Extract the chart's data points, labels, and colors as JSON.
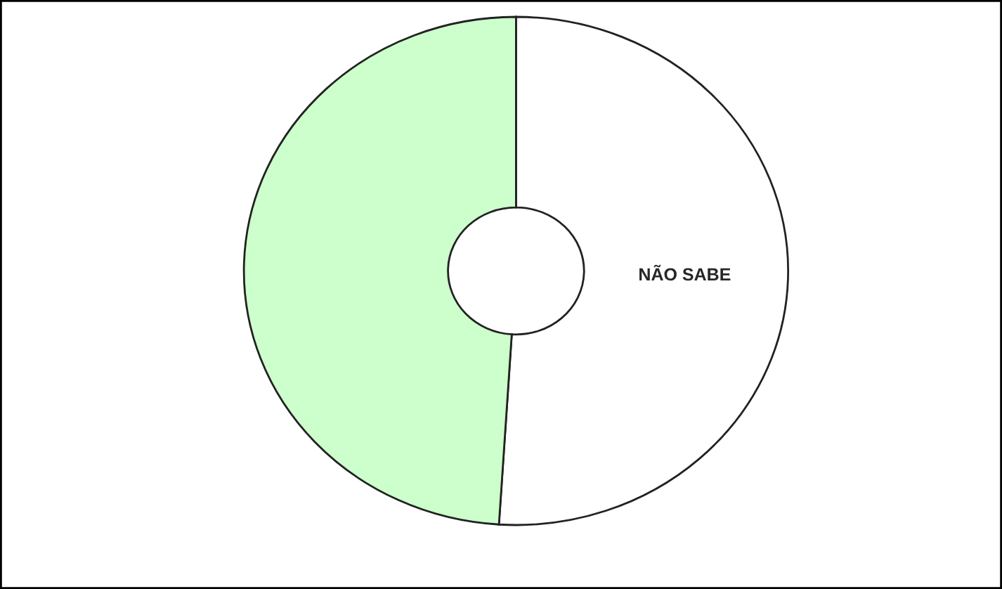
{
  "chart_data": {
    "type": "donut",
    "categories": [
      "NÃO SABE",
      null
    ],
    "values": [
      51,
      49
    ],
    "colors": [
      "#ffffff",
      "#ccffcc"
    ]
  }
}
